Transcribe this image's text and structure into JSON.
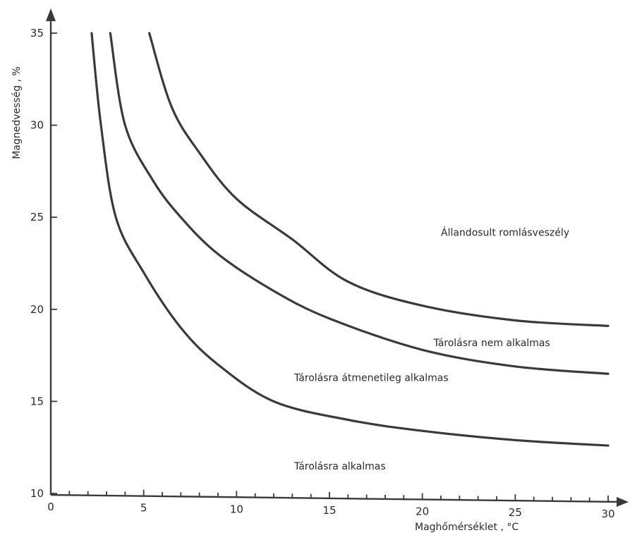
{
  "chart_data": {
    "type": "line",
    "xlabel": "Maghőmérséklet , °C",
    "ylabel": "Magnedvesség , %",
    "xlim": [
      0,
      30
    ],
    "ylim": [
      10,
      35
    ],
    "x_ticks": [
      0,
      5,
      10,
      15,
      20,
      25,
      30
    ],
    "y_ticks": [
      10,
      15,
      20,
      25,
      30,
      35
    ],
    "x_minor_step": 1,
    "grid": false,
    "legend": "none",
    "series": [
      {
        "x": [
          2.2,
          2.7,
          3.5,
          5,
          7,
          9,
          12,
          16,
          20,
          25,
          30
        ],
        "y": [
          35,
          30,
          25,
          22,
          19,
          17,
          15,
          14,
          13.4,
          12.9,
          12.6
        ]
      },
      {
        "x": [
          3.2,
          4,
          5.5,
          7,
          9,
          12,
          15,
          20,
          25,
          30
        ],
        "y": [
          35,
          30,
          27,
          25,
          23,
          21,
          19.5,
          17.8,
          16.9,
          16.5
        ]
      },
      {
        "x": [
          5.3,
          6.5,
          8,
          10,
          13,
          16,
          20,
          25,
          30
        ],
        "y": [
          35,
          31,
          28.5,
          26,
          23.8,
          21.5,
          20.2,
          19.4,
          19.1
        ]
      }
    ],
    "annotations": [
      {
        "text": "Állandosult romlásveszély",
        "x": 21,
        "y": 24
      },
      {
        "text": "Tárolásra nem alkalmas",
        "x": 20.6,
        "y": 18
      },
      {
        "text": "Tárolásra átmenetileg alkalmas",
        "x": 13.1,
        "y": 16.1
      },
      {
        "text": "Tárolásra alkalmas",
        "x": 13.1,
        "y": 11.3
      }
    ]
  }
}
